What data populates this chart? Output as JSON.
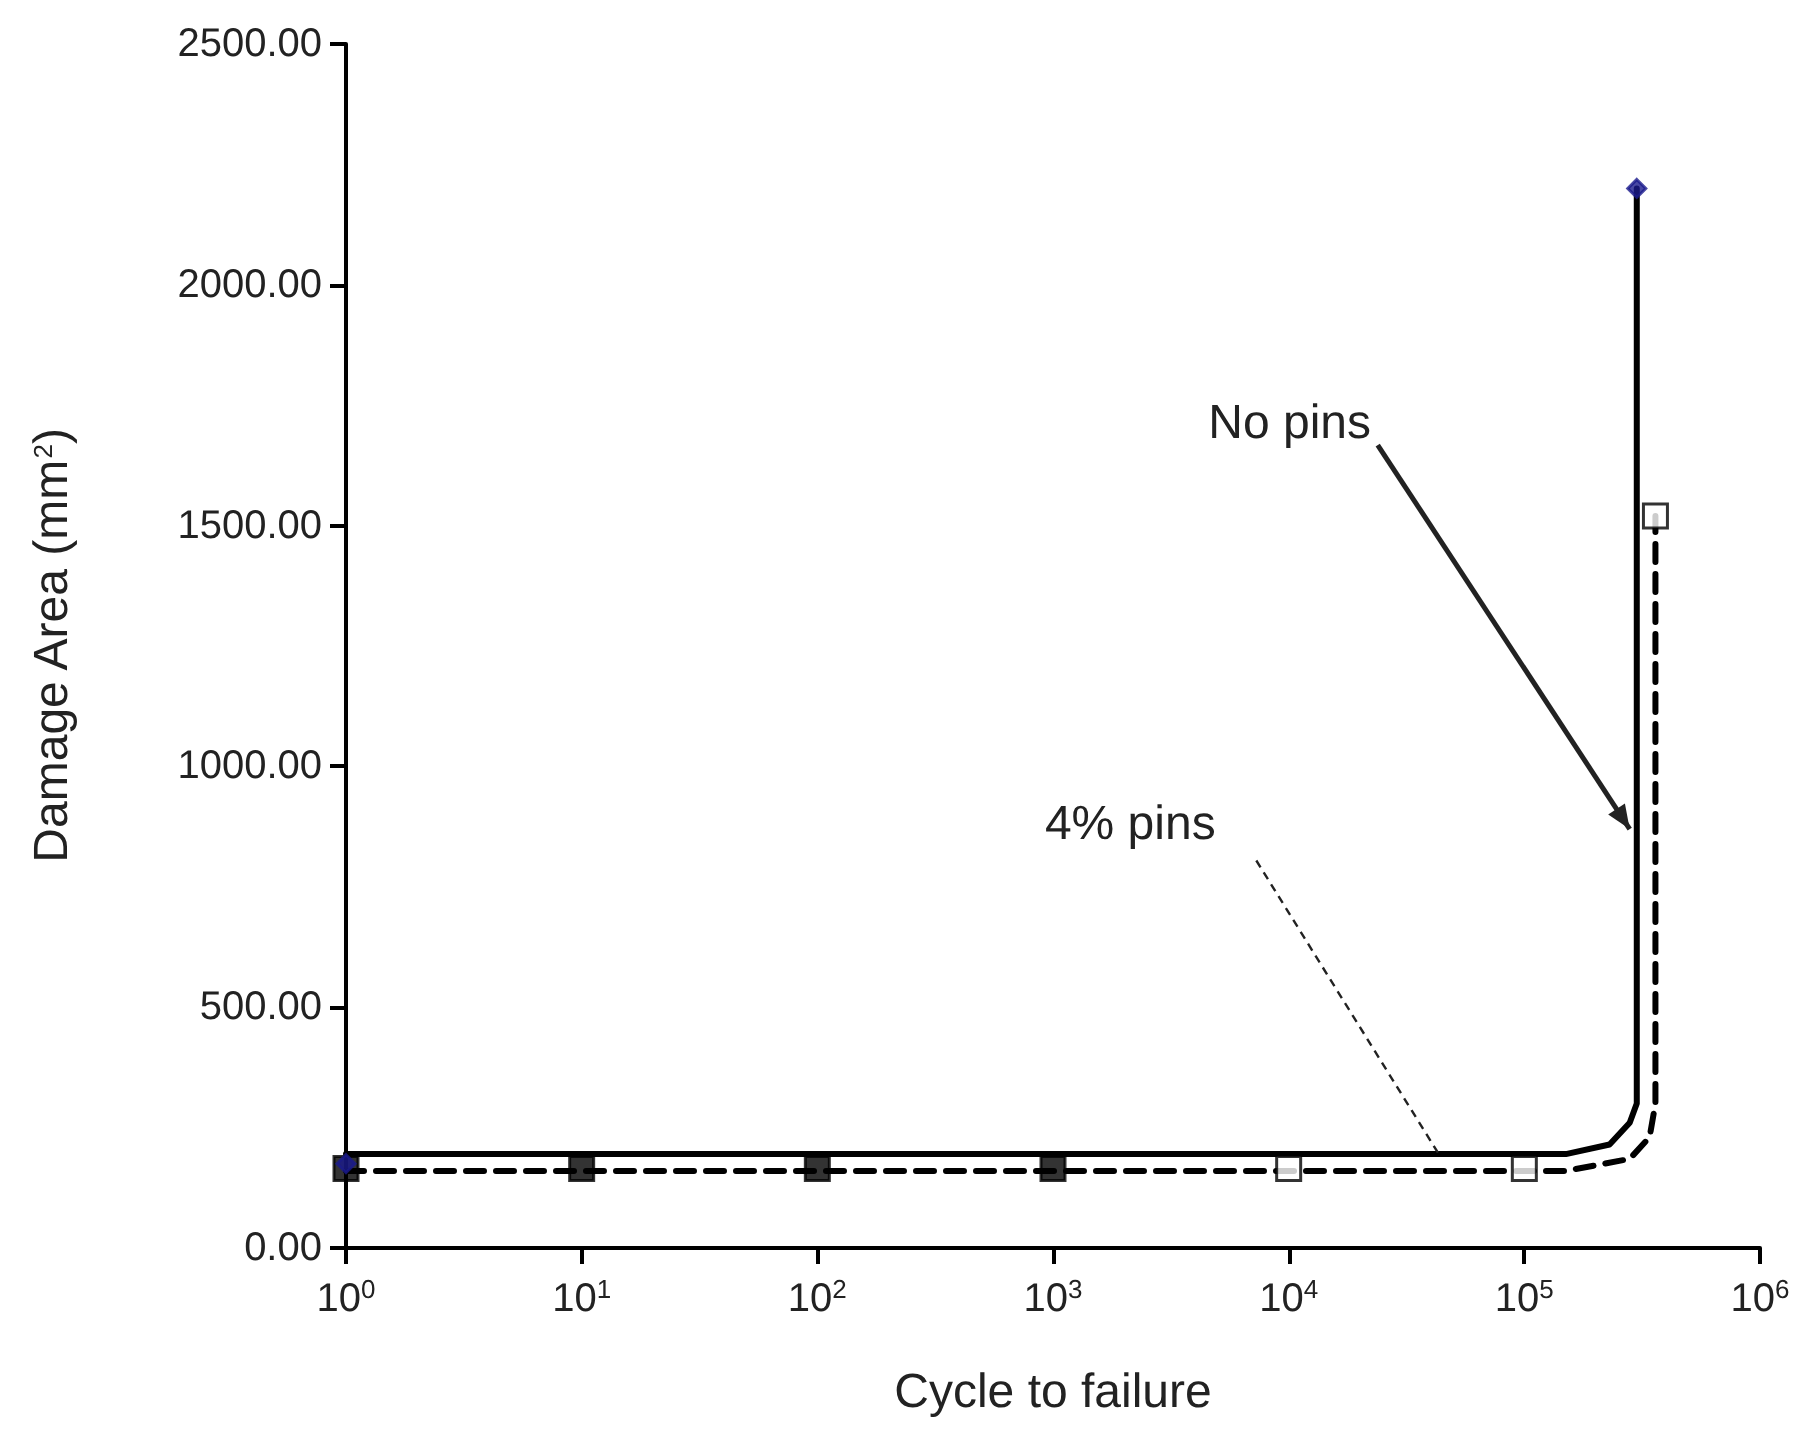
{
  "chart_data": {
    "type": "line",
    "xlabel": "Cycle to failure",
    "ylabel": "Damage Area (mm$^{2}$)",
    "log": "x",
    "grid": false,
    "xlim": [
      1,
      1000000
    ],
    "xticks": [
      {
        "value": 1,
        "label": "10$^{0}$"
      },
      {
        "value": 10,
        "label": "10$^{1}$"
      },
      {
        "value": 100,
        "label": "10$^{2}$"
      },
      {
        "value": 1000,
        "label": "10$^{3}$"
      },
      {
        "value": 10000,
        "label": "10$^{4}$"
      },
      {
        "value": 100000,
        "label": "10$^{5}$"
      },
      {
        "value": 1000000,
        "label": "10$^{6}$"
      }
    ],
    "ylim": [
      0,
      2500
    ],
    "yticks": [
      {
        "value": 0,
        "label": "0.00"
      },
      {
        "value": 500,
        "label": "500.00"
      },
      {
        "value": 1000,
        "label": "1000.00"
      },
      {
        "value": 1500,
        "label": "1500.00"
      },
      {
        "value": 2000,
        "label": "2000.00"
      },
      {
        "value": 2500,
        "label": "2500.00"
      }
    ],
    "series": [
      {
        "color": "#000000",
        "line_style": "solid",
        "marker": "none",
        "x": [
          1,
          150000,
          230000,
          280000,
          300000,
          300000
        ],
        "values": [
          195,
          195,
          215,
          260,
          300,
          2200
        ]
      },
      {
        "color": "#000000",
        "line_style": "dashed",
        "marker": "none",
        "x": [
          1,
          150000,
          280000,
          340000,
          360000,
          360000
        ],
        "values": [
          160,
          160,
          185,
          230,
          300,
          1520
        ]
      },
      {
        "type": "scatter",
        "color": "#000000",
        "marker": "square",
        "x": [
          1,
          10,
          100,
          1000,
          10000,
          100000,
          360000
        ],
        "values": [
          165,
          165,
          165,
          165,
          165,
          165,
          1520
        ],
        "colors": [
          "#000000",
          "#000000",
          "#000000",
          "#000000",
          "#ffffff",
          "#ffffff",
          "#ffffff"
        ]
      },
      {
        "type": "scatter",
        "color": "#1a1a8c",
        "marker": "diamond",
        "x": [
          1,
          300000
        ],
        "values": [
          175,
          2200
        ]
      }
    ],
    "annotations": [
      {
        "text": "No pins",
        "x": 280000,
        "y": 870
      },
      {
        "text": "4% pins",
        "x": 44000,
        "y": 190
      }
    ]
  }
}
